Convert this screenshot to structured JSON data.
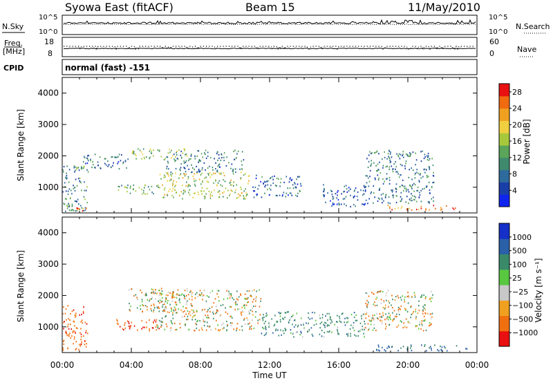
{
  "header": {
    "title": "Syowa East (fitACF)",
    "beam": "Beam 15",
    "date": "11/May/2010"
  },
  "status": {
    "nsky_label": "N.Sky",
    "nsky_ticks": [
      "10^5",
      "10^0"
    ],
    "nsearch_label": "N.Search",
    "nsearch_ticks": [
      "10^5",
      "10^0"
    ],
    "freq_label_1": "Freq.",
    "freq_label_2": "[MHz]",
    "freq_ticks": [
      "18",
      "8"
    ],
    "nave_label": "Nave",
    "nave_ticks": [
      "60",
      "0"
    ],
    "cpid_label": "CPID",
    "cpid_value": "normal (fast) -151"
  },
  "chart_data": [
    {
      "type": "heatmap",
      "name": "power",
      "ylabel": "Slant Range [km]",
      "xlabel": "Time UT",
      "yticks": [
        "4000",
        "3000",
        "2000",
        "1000"
      ],
      "ylim": [
        180,
        4500
      ],
      "xlim": [
        0,
        24
      ],
      "colorbar": {
        "label": "Power [dB]",
        "ticks": [
          "28",
          "24",
          "20",
          "16",
          "12",
          "8",
          "4"
        ],
        "range": [
          0,
          30
        ],
        "colors": [
          "#1024f0",
          "#1a3ea8",
          "#2f6a9c",
          "#3f8a6e",
          "#5aa55a",
          "#a8c83c",
          "#f0d040",
          "#f0a020",
          "#f06a10",
          "#e81010"
        ]
      },
      "echo_bands": [
        {
          "t": [
            0.0,
            1.5
          ],
          "range": [
            250,
            1700
          ],
          "power": 10
        },
        {
          "t": [
            0.3,
            1.5
          ],
          "range": [
            250,
            400
          ],
          "power": 24
        },
        {
          "t": [
            1.2,
            3.8
          ],
          "range": [
            1600,
            2100
          ],
          "power": 8
        },
        {
          "t": [
            3.8,
            7.2
          ],
          "range": [
            1900,
            2250
          ],
          "power": 15
        },
        {
          "t": [
            3.0,
            5.5
          ],
          "range": [
            800,
            1100
          ],
          "power": 12
        },
        {
          "t": [
            5.5,
            10.8
          ],
          "range": [
            650,
            1500
          ],
          "power": 17
        },
        {
          "t": [
            6.0,
            10.5
          ],
          "range": [
            1500,
            2200
          ],
          "power": 9
        },
        {
          "t": [
            11.0,
            14.0
          ],
          "range": [
            700,
            1400
          ],
          "power": 8
        },
        {
          "t": [
            15.0,
            17.5
          ],
          "range": [
            400,
            1100
          ],
          "power": 6
        },
        {
          "t": [
            17.5,
            21.5
          ],
          "range": [
            500,
            2200
          ],
          "power": 9
        },
        {
          "t": [
            18.5,
            23.0
          ],
          "range": [
            280,
            450
          ],
          "power": 25
        }
      ]
    },
    {
      "type": "heatmap",
      "name": "velocity",
      "ylabel": "Slant Range [km]",
      "xlabel": "Time UT",
      "yticks": [
        "4000",
        "3000",
        "2000",
        "1000"
      ],
      "ylim": [
        180,
        4500
      ],
      "xlim": [
        0,
        24
      ],
      "colorbar": {
        "label": "Velocity [m s⁻¹]",
        "ticks": [
          "1000",
          "500",
          "100",
          "25",
          "−25",
          "−100",
          "−500",
          "−1000"
        ],
        "colors": [
          "#1530c8",
          "#2a60a8",
          "#3a8a6a",
          "#58c840",
          "#c8c8c8",
          "#f0a020",
          "#f07010",
          "#e81010"
        ]
      },
      "echo_bands": [
        {
          "t": [
            0.0,
            1.5
          ],
          "range": [
            250,
            1700
          ],
          "velocity": -200
        },
        {
          "t": [
            3.8,
            7.2
          ],
          "range": [
            1500,
            2250
          ],
          "velocity": 0
        },
        {
          "t": [
            3.0,
            5.8
          ],
          "range": [
            900,
            1250
          ],
          "velocity": -300
        },
        {
          "t": [
            5.5,
            11.5
          ],
          "range": [
            900,
            2200
          ],
          "velocity": 0
        },
        {
          "t": [
            11.5,
            17.5
          ],
          "range": [
            700,
            1500
          ],
          "velocity": 150
        },
        {
          "t": [
            17.5,
            21.5
          ],
          "range": [
            900,
            2200
          ],
          "velocity": 0
        },
        {
          "t": [
            18.0,
            23.5
          ],
          "range": [
            250,
            450
          ],
          "velocity": 300
        }
      ]
    }
  ],
  "x_axis": {
    "ticks": [
      "00:00",
      "04:00",
      "08:00",
      "12:00",
      "16:00",
      "20:00",
      "00:00"
    ],
    "label": "Time UT"
  }
}
